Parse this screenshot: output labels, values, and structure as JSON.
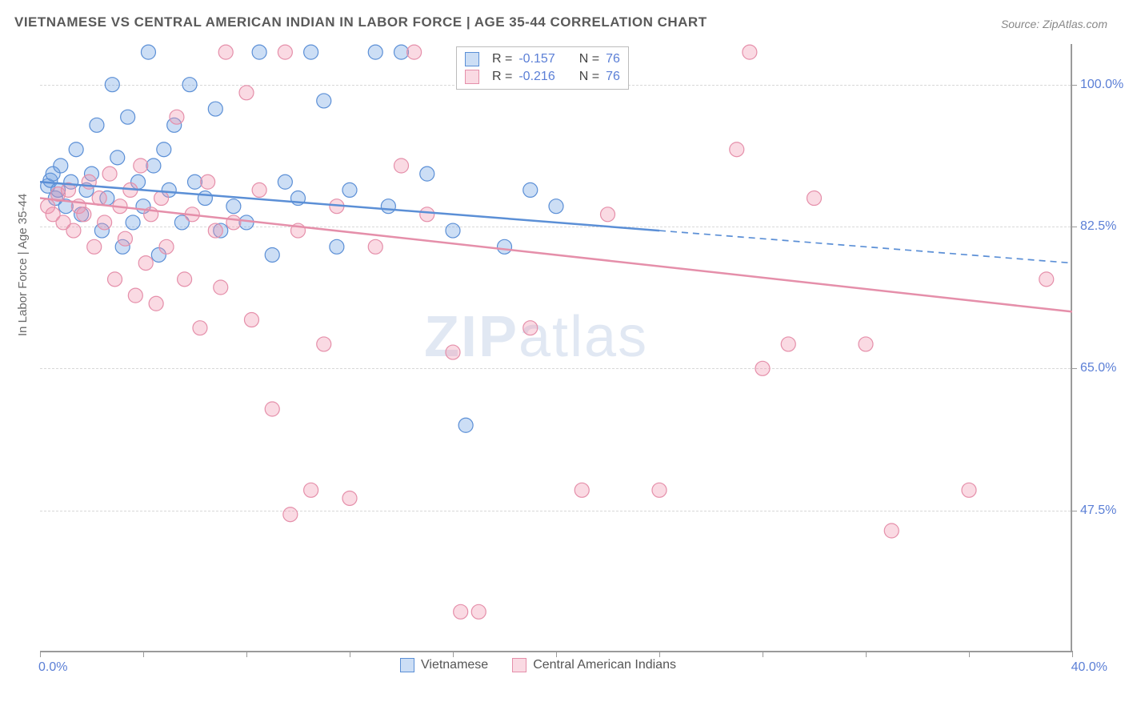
{
  "title": "VIETNAMESE VS CENTRAL AMERICAN INDIAN IN LABOR FORCE | AGE 35-44 CORRELATION CHART",
  "source": "Source: ZipAtlas.com",
  "watermark": "ZIPatlas",
  "chart": {
    "type": "scatter",
    "xlim": [
      0,
      40
    ],
    "ylim": [
      30,
      105
    ],
    "x_tick_positions": [
      0,
      4,
      8,
      12,
      16,
      20,
      24,
      28,
      32,
      36,
      40
    ],
    "y_grid_positions": [
      47.5,
      65.0,
      82.5,
      100.0
    ],
    "x_axis_label_left": "0.0%",
    "x_axis_label_right": "40.0%",
    "y_tick_labels": [
      "47.5%",
      "65.0%",
      "82.5%",
      "100.0%"
    ],
    "y_axis_label": "In Labor Force | Age 35-44",
    "background_color": "#ffffff",
    "grid_color": "#d8d8d8",
    "axis_color": "#9a9a9a",
    "tick_label_color": "#5b7fd6",
    "marker_radius": 9,
    "marker_stroke_width": 1.2,
    "trend_line_width": 2.5,
    "series": [
      {
        "name": "Vietnamese",
        "label": "Vietnamese",
        "fill": "rgba(110,160,225,0.35)",
        "stroke": "#5b8fd6",
        "R": "-0.157",
        "N": "76",
        "trend": {
          "x1": 0,
          "y1": 88,
          "x_solid_end": 24,
          "y_solid_end": 82,
          "x2": 40,
          "y2": 78
        },
        "points": [
          [
            0.3,
            87.5
          ],
          [
            0.4,
            88.2
          ],
          [
            0.5,
            89
          ],
          [
            0.6,
            86
          ],
          [
            0.7,
            87
          ],
          [
            0.8,
            90
          ],
          [
            1,
            85
          ],
          [
            1.2,
            88
          ],
          [
            1.4,
            92
          ],
          [
            1.6,
            84
          ],
          [
            1.8,
            87
          ],
          [
            2,
            89
          ],
          [
            2.2,
            95
          ],
          [
            2.4,
            82
          ],
          [
            2.6,
            86
          ],
          [
            2.8,
            100
          ],
          [
            3,
            91
          ],
          [
            3.2,
            80
          ],
          [
            3.4,
            96
          ],
          [
            3.6,
            83
          ],
          [
            3.8,
            88
          ],
          [
            4,
            85
          ],
          [
            4.2,
            104
          ],
          [
            4.4,
            90
          ],
          [
            4.6,
            79
          ],
          [
            4.8,
            92
          ],
          [
            5,
            87
          ],
          [
            5.2,
            95
          ],
          [
            5.5,
            83
          ],
          [
            5.8,
            100
          ],
          [
            6,
            88
          ],
          [
            6.4,
            86
          ],
          [
            6.8,
            97
          ],
          [
            7,
            82
          ],
          [
            7.5,
            85
          ],
          [
            8,
            83
          ],
          [
            8.5,
            104
          ],
          [
            9,
            79
          ],
          [
            9.5,
            88
          ],
          [
            10,
            86
          ],
          [
            10.5,
            104
          ],
          [
            11,
            98
          ],
          [
            11.5,
            80
          ],
          [
            12,
            87
          ],
          [
            13,
            104
          ],
          [
            13.5,
            85
          ],
          [
            14,
            104
          ],
          [
            15,
            89
          ],
          [
            16,
            82
          ],
          [
            16.5,
            58
          ],
          [
            18,
            80
          ],
          [
            19,
            87
          ],
          [
            20,
            85
          ]
        ]
      },
      {
        "name": "Central American Indians",
        "label": "Central American Indians",
        "fill": "rgba(240,150,175,0.35)",
        "stroke": "#e58faa",
        "R": "-0.216",
        "N": "76",
        "trend": {
          "x1": 0,
          "y1": 86,
          "x_solid_end": 40,
          "y_solid_end": 72,
          "x2": 40,
          "y2": 72
        },
        "points": [
          [
            0.3,
            85
          ],
          [
            0.5,
            84
          ],
          [
            0.7,
            86.5
          ],
          [
            0.9,
            83
          ],
          [
            1.1,
            87
          ],
          [
            1.3,
            82
          ],
          [
            1.5,
            85
          ],
          [
            1.7,
            84
          ],
          [
            1.9,
            88
          ],
          [
            2.1,
            80
          ],
          [
            2.3,
            86
          ],
          [
            2.5,
            83
          ],
          [
            2.7,
            89
          ],
          [
            2.9,
            76
          ],
          [
            3.1,
            85
          ],
          [
            3.3,
            81
          ],
          [
            3.5,
            87
          ],
          [
            3.7,
            74
          ],
          [
            3.9,
            90
          ],
          [
            4.1,
            78
          ],
          [
            4.3,
            84
          ],
          [
            4.5,
            73
          ],
          [
            4.7,
            86
          ],
          [
            4.9,
            80
          ],
          [
            5.3,
            96
          ],
          [
            5.6,
            76
          ],
          [
            5.9,
            84
          ],
          [
            6.2,
            70
          ],
          [
            6.5,
            88
          ],
          [
            6.8,
            82
          ],
          [
            7,
            75
          ],
          [
            7.2,
            104
          ],
          [
            7.5,
            83
          ],
          [
            8,
            99
          ],
          [
            8.2,
            71
          ],
          [
            8.5,
            87
          ],
          [
            9,
            60
          ],
          [
            9.5,
            104
          ],
          [
            9.7,
            47
          ],
          [
            10,
            82
          ],
          [
            10.5,
            50
          ],
          [
            11,
            68
          ],
          [
            11.5,
            85
          ],
          [
            12,
            49
          ],
          [
            13,
            80
          ],
          [
            14,
            90
          ],
          [
            14.5,
            104
          ],
          [
            15,
            84
          ],
          [
            16,
            67
          ],
          [
            16.3,
            35
          ],
          [
            17,
            35
          ],
          [
            19,
            70
          ],
          [
            21,
            50
          ],
          [
            22,
            84
          ],
          [
            24,
            50
          ],
          [
            27,
            92
          ],
          [
            27.5,
            104
          ],
          [
            28,
            65
          ],
          [
            29,
            68
          ],
          [
            30,
            86
          ],
          [
            32,
            68
          ],
          [
            33,
            45
          ],
          [
            36,
            50
          ],
          [
            39,
            76
          ]
        ]
      }
    ]
  },
  "legend_bottom": [
    {
      "label": "Vietnamese",
      "fill": "rgba(110,160,225,0.35)",
      "stroke": "#5b8fd6"
    },
    {
      "label": "Central American Indians",
      "fill": "rgba(240,150,175,0.35)",
      "stroke": "#e58faa"
    }
  ],
  "stats_box": {
    "rows": [
      {
        "swatch_fill": "rgba(110,160,225,0.35)",
        "swatch_stroke": "#5b8fd6",
        "R": "-0.157",
        "N": "76"
      },
      {
        "swatch_fill": "rgba(240,150,175,0.35)",
        "swatch_stroke": "#e58faa",
        "R": "-0.216",
        "N": "76"
      }
    ]
  }
}
